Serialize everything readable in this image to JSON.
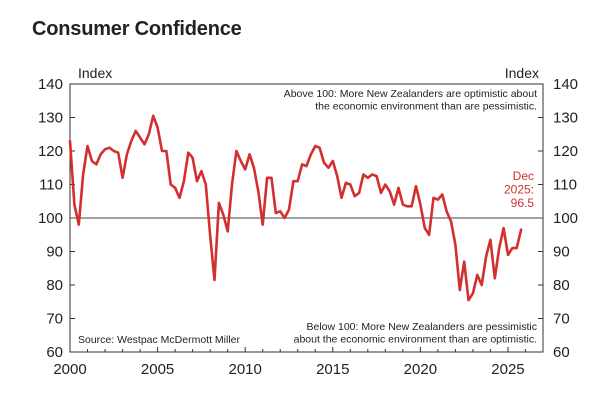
{
  "chart_data": {
    "type": "line",
    "title": "Consumer Confidence",
    "ylabel_left": "Index",
    "ylabel_right": "Index",
    "xlim": [
      2000,
      2027
    ],
    "ylim": [
      60,
      140
    ],
    "xticks": [
      2000,
      2005,
      2010,
      2015,
      2020,
      2025
    ],
    "yticks": [
      60,
      70,
      80,
      90,
      100,
      110,
      120,
      130,
      140
    ],
    "reference_line": 100,
    "annotations": {
      "above": [
        "Above 100: More New Zealanders are optimistic about",
        "the economic environment than are pessimistic."
      ],
      "below": [
        "Below 100: More New Zealanders are pessimistic",
        "about the economic environment than are optimistic."
      ],
      "latest": [
        "Dec",
        "2025:",
        "96.5"
      ],
      "source": "Source: Westpac McDermott Miller"
    },
    "series": [
      {
        "color": "#d32f2f",
        "points": [
          [
            2000.0,
            123
          ],
          [
            2000.25,
            104
          ],
          [
            2000.5,
            98
          ],
          [
            2000.75,
            113
          ],
          [
            2001.0,
            121.5
          ],
          [
            2001.25,
            117
          ],
          [
            2001.5,
            116
          ],
          [
            2001.75,
            119
          ],
          [
            2002.0,
            120.5
          ],
          [
            2002.25,
            121
          ],
          [
            2002.5,
            120
          ],
          [
            2002.75,
            119.5
          ],
          [
            2003.0,
            112
          ],
          [
            2003.25,
            119
          ],
          [
            2003.5,
            123
          ],
          [
            2003.75,
            126
          ],
          [
            2004.0,
            124
          ],
          [
            2004.25,
            122
          ],
          [
            2004.5,
            125
          ],
          [
            2004.75,
            130.5
          ],
          [
            2005.0,
            127
          ],
          [
            2005.25,
            120
          ],
          [
            2005.5,
            120
          ],
          [
            2005.75,
            110
          ],
          [
            2006.0,
            109
          ],
          [
            2006.25,
            106
          ],
          [
            2006.5,
            111
          ],
          [
            2006.75,
            119.5
          ],
          [
            2007.0,
            118
          ],
          [
            2007.25,
            111
          ],
          [
            2007.5,
            114
          ],
          [
            2007.75,
            110
          ],
          [
            2008.0,
            95
          ],
          [
            2008.25,
            81.5
          ],
          [
            2008.5,
            104.5
          ],
          [
            2008.75,
            101
          ],
          [
            2009.0,
            96
          ],
          [
            2009.25,
            110
          ],
          [
            2009.5,
            120
          ],
          [
            2009.75,
            117
          ],
          [
            2010.0,
            114.5
          ],
          [
            2010.25,
            119
          ],
          [
            2010.5,
            115
          ],
          [
            2010.75,
            108
          ],
          [
            2011.0,
            98
          ],
          [
            2011.25,
            112
          ],
          [
            2011.5,
            112
          ],
          [
            2011.75,
            101.5
          ],
          [
            2012.0,
            102
          ],
          [
            2012.25,
            100
          ],
          [
            2012.5,
            102.5
          ],
          [
            2012.75,
            111
          ],
          [
            2013.0,
            111
          ],
          [
            2013.25,
            116
          ],
          [
            2013.5,
            115.5
          ],
          [
            2013.75,
            119
          ],
          [
            2014.0,
            121.5
          ],
          [
            2014.25,
            121
          ],
          [
            2014.5,
            116.5
          ],
          [
            2014.75,
            115
          ],
          [
            2015.0,
            117
          ],
          [
            2015.25,
            112.5
          ],
          [
            2015.5,
            106
          ],
          [
            2015.75,
            110.5
          ],
          [
            2016.0,
            110
          ],
          [
            2016.25,
            106.5
          ],
          [
            2016.5,
            107.5
          ],
          [
            2016.75,
            113
          ],
          [
            2017.0,
            112
          ],
          [
            2017.25,
            113
          ],
          [
            2017.5,
            112.5
          ],
          [
            2017.75,
            107.5
          ],
          [
            2018.0,
            110
          ],
          [
            2018.25,
            108
          ],
          [
            2018.5,
            104
          ],
          [
            2018.75,
            109
          ],
          [
            2019.0,
            104
          ],
          [
            2019.25,
            103.5
          ],
          [
            2019.5,
            103.5
          ],
          [
            2019.75,
            109.5
          ],
          [
            2020.0,
            104
          ],
          [
            2020.25,
            97
          ],
          [
            2020.5,
            95
          ],
          [
            2020.75,
            106
          ],
          [
            2021.0,
            105.5
          ],
          [
            2021.25,
            107
          ],
          [
            2021.5,
            102
          ],
          [
            2021.75,
            99
          ],
          [
            2022.0,
            92
          ],
          [
            2022.25,
            78.5
          ],
          [
            2022.5,
            87
          ],
          [
            2022.75,
            75.5
          ],
          [
            2023.0,
            77.5
          ],
          [
            2023.25,
            83
          ],
          [
            2023.5,
            80
          ],
          [
            2023.75,
            88.5
          ],
          [
            2024.0,
            93.5
          ],
          [
            2024.25,
            82
          ],
          [
            2024.5,
            91
          ],
          [
            2024.75,
            97
          ],
          [
            2025.0,
            89
          ],
          [
            2025.25,
            91
          ],
          [
            2025.5,
            91
          ],
          [
            2025.75,
            96.5
          ]
        ]
      }
    ]
  }
}
